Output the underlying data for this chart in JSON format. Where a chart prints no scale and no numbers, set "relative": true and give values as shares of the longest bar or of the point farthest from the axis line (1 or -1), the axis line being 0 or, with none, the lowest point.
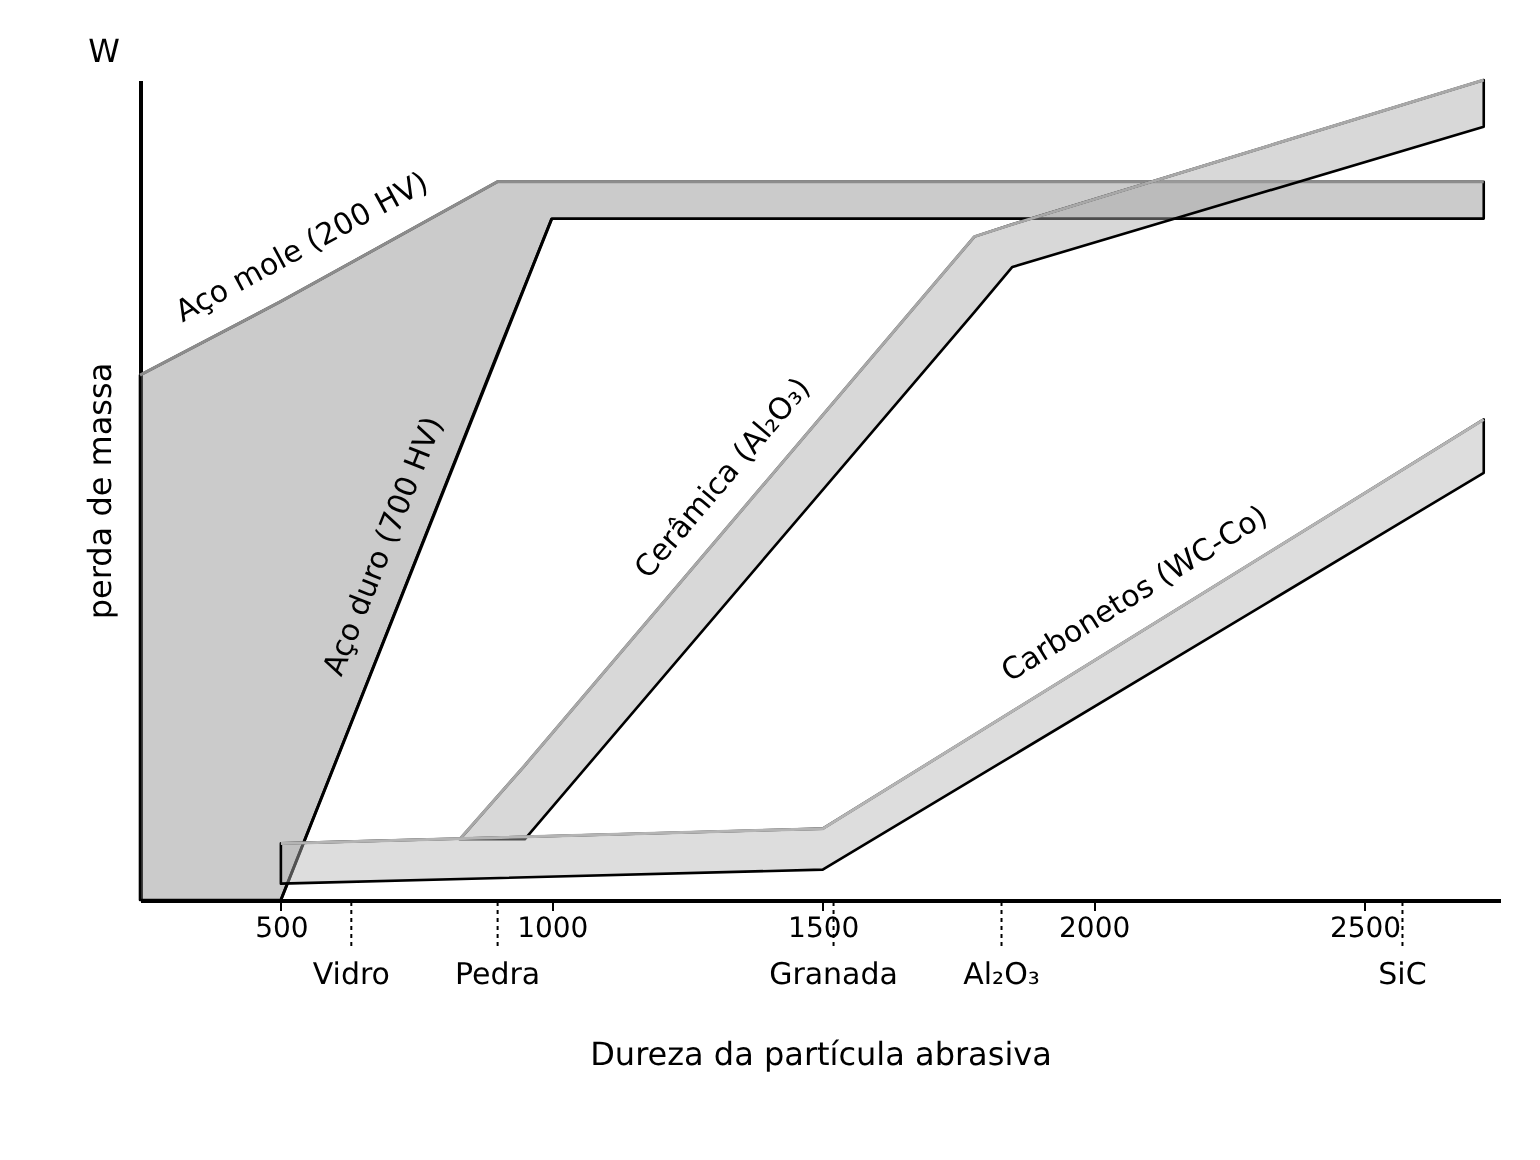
{
  "chart_data": {
    "type": "line",
    "relative": true,
    "xlabel": "Dureza da partícula abrasiva",
    "ylabel": "perda de massa",
    "annotations": [
      "W"
    ],
    "xlim": [
      240,
      2750
    ],
    "xticks": [
      500,
      1000,
      1500,
      2000,
      2500
    ],
    "series": [
      {
        "name": "Aço mole (200 HV)",
        "color": "#8c8c8c",
        "x": [
          240,
          500,
          900,
          1000,
          2720
        ],
        "values": [
          0.64,
          0.73,
          0.876,
          0.876,
          0.876
        ],
        "upper": [
          0.64,
          0.73,
          0.876,
          0.876,
          0.876
        ],
        "lower": [
          0,
          0,
          0.667,
          0.831,
          0.831
        ]
      },
      {
        "name": "Aço duro (700 HV)",
        "color": "#000000",
        "x": [
          500,
          1000
        ],
        "values": [
          0,
          0.831
        ]
      },
      {
        "name": "Cerâmica (Al₂O₃)",
        "color": "#a8a8a8",
        "x": [
          830,
          950,
          1780,
          1850,
          2720
        ],
        "values": [
          0.074,
          0.164,
          0.809,
          0.824,
          1.0
        ],
        "upper": [
          0.074,
          0.164,
          0.809,
          0.824,
          1.0
        ],
        "lower": [
          0.074,
          0.074,
          0.717,
          0.772,
          0.943
        ]
      },
      {
        "name": "Carbonetos (WC-Co)",
        "color": "#b4b4b4",
        "x": [
          500,
          1500,
          2720
        ],
        "values": [
          0.069,
          0.087,
          0.586
        ],
        "upper": [
          0.069,
          0.087,
          0.586
        ],
        "lower": [
          0.02,
          0.037,
          0.521
        ]
      }
    ],
    "ref_lines": [
      {
        "axis": "x",
        "value": 630,
        "label": "Vidro",
        "line_style": "dotted"
      },
      {
        "axis": "x",
        "value": 900,
        "label": "Pedra",
        "line_style": "dotted"
      },
      {
        "axis": "x",
        "value": 1520,
        "label": "Granada",
        "line_style": "dotted"
      },
      {
        "axis": "x",
        "value": 1830,
        "label": "Al₂O₃",
        "line_style": "dotted"
      },
      {
        "axis": "x",
        "value": 2570,
        "label": "SiC",
        "line_style": "dotted"
      }
    ]
  }
}
